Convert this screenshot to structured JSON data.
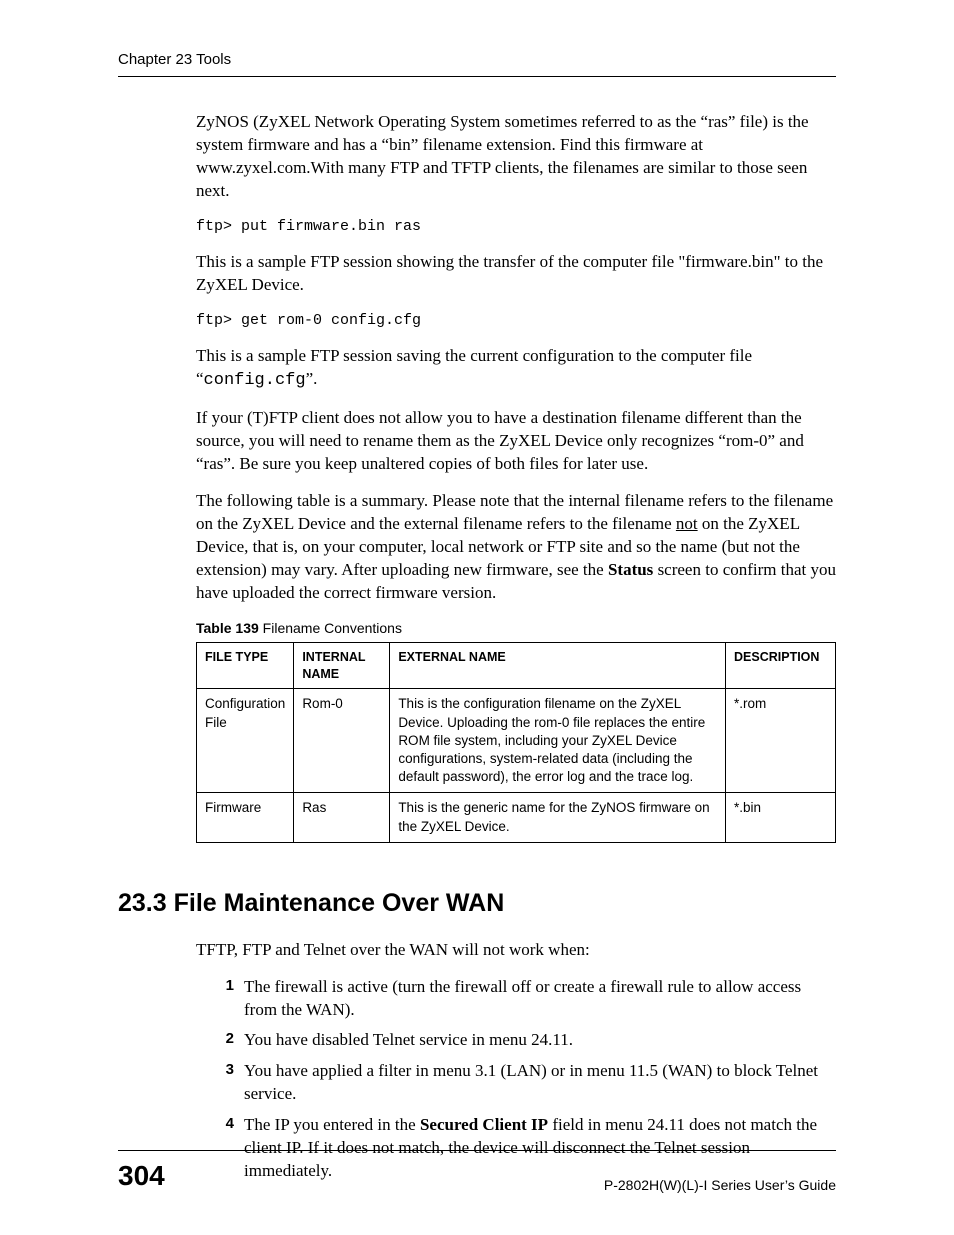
{
  "header": {
    "running": "Chapter 23 Tools"
  },
  "body": {
    "p1": "ZyNOS (ZyXEL Network Operating System sometimes referred to as the “ras” file) is the system firmware and has a “bin” filename extension. Find this firmware at www.zyxel.com.With many FTP and TFTP clients, the filenames are similar to those seen next.",
    "code1": "ftp> put firmware.bin ras",
    "p2": "This is a sample FTP session showing the transfer of the computer file \"firmware.bin\" to the ZyXEL Device.",
    "code2": "ftp> get rom-0 config.cfg",
    "p3a": "This is a sample FTP session saving the current configuration to the computer file “",
    "p3b": "config.cfg",
    "p3c": "”.",
    "p4": "If your (T)FTP client does not allow you to have a destination filename different than the source, you will need to rename them as the ZyXEL Device only recognizes “rom-0” and “ras”. Be sure you keep unaltered copies of both files for later use.",
    "p5a": "The following table is a summary. Please note that the internal filename refers to the filename on the ZyXEL Device and the external filename refers to the filename ",
    "p5u": "not",
    "p5b": " on the ZyXEL Device, that is, on your computer, local network or FTP site and so the name (but not the extension) may vary. After uploading new firmware, see the ",
    "p5bold": "Status",
    "p5c": " screen to confirm that you have uploaded the correct firmware version."
  },
  "table": {
    "caption_num": "Table 139",
    "caption_title": "   Filename Conventions",
    "columns": [
      "FILE TYPE",
      "INTERNAL NAME",
      "EXTERNAL NAME",
      "DESCRIPTION"
    ],
    "col_widths": [
      "90px",
      "96px",
      "auto",
      "110px"
    ],
    "rows": [
      [
        "Configuration File",
        "Rom-0",
        "This is the configuration filename on the ZyXEL Device. Uploading the rom-0 file replaces the entire ROM file system, including your ZyXEL Device configurations, system-related data (including the default password), the error log and the trace log.",
        "*.rom"
      ],
      [
        "Firmware",
        "Ras",
        "This is the generic name for the ZyNOS firmware on the ZyXEL Device.",
        "*.bin"
      ]
    ]
  },
  "section": {
    "heading": "23.3  File Maintenance Over WAN",
    "intro": "TFTP, FTP and Telnet over the WAN will not work when:",
    "items": [
      {
        "n": "1",
        "t": "The firewall is active (turn the firewall off or create a firewall rule to allow access from the WAN)."
      },
      {
        "n": "2",
        "t": "You have disabled Telnet service in menu 24.11."
      },
      {
        "n": "3",
        "t": "You have applied a filter in menu 3.1 (LAN) or in menu 11.5 (WAN) to block Telnet service."
      },
      {
        "n": "4",
        "a": "The IP you entered in the ",
        "bold": "Secured Client IP",
        "b": " field in menu 24.11 does not match the client IP. If it does not match, the device will disconnect the Telnet session immediately."
      }
    ]
  },
  "footer": {
    "page": "304",
    "guide": "P-2802H(W)(L)-I Series User’s Guide"
  }
}
